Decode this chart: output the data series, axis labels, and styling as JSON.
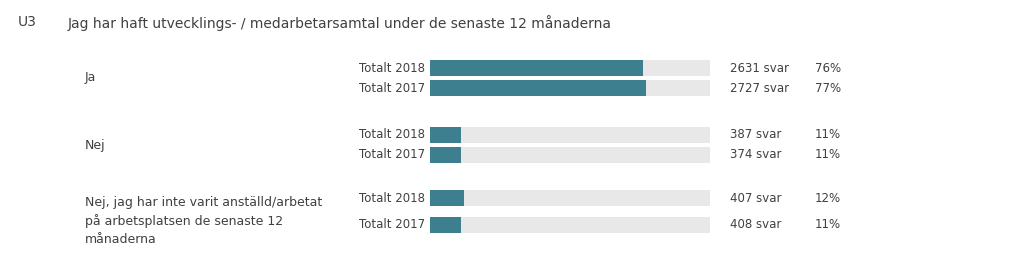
{
  "title": "Jag har haft utvecklings- / medarbetarsamtal under de senaste 12 månaderna",
  "question_id": "U3",
  "background_color": "#ffffff",
  "bar_bg_color": "#e8e8e8",
  "bar_fill_color": "#3d7f8f",
  "rows": [
    {
      "label": "Totalt 2018",
      "value": 76,
      "svar": "2631 svar",
      "pct": "76%"
    },
    {
      "label": "Totalt 2017",
      "value": 77,
      "svar": "2727 svar",
      "pct": "77%"
    },
    {
      "label": "Totalt 2018",
      "value": 11,
      "svar": "387 svar",
      "pct": "11%"
    },
    {
      "label": "Totalt 2017",
      "value": 11,
      "svar": "374 svar",
      "pct": "11%"
    },
    {
      "label": "Totalt 2018",
      "value": 12,
      "svar": "407 svar",
      "pct": "12%"
    },
    {
      "label": "Totalt 2017",
      "value": 11,
      "svar": "408 svar",
      "pct": "11%"
    }
  ],
  "max_value": 100,
  "group_labels": [
    {
      "text": "Ja",
      "rows": [
        0,
        1
      ]
    },
    {
      "text": "Nej",
      "rows": [
        2,
        3
      ]
    },
    {
      "text": "Nej, jag har inte varit anställd/arbetat\npå arbetsplatsen de senaste 12\nmånaderna",
      "rows": [
        4,
        5
      ]
    }
  ],
  "title_fontsize": 10,
  "group_label_fontsize": 9,
  "row_label_fontsize": 8.5,
  "annot_fontsize": 8.5,
  "text_color": "#404040",
  "bar_color": "#3d7f8f",
  "bar_bg": "#e8e8e8",
  "fig_w": 10.24,
  "fig_h": 2.59,
  "dpi": 100
}
